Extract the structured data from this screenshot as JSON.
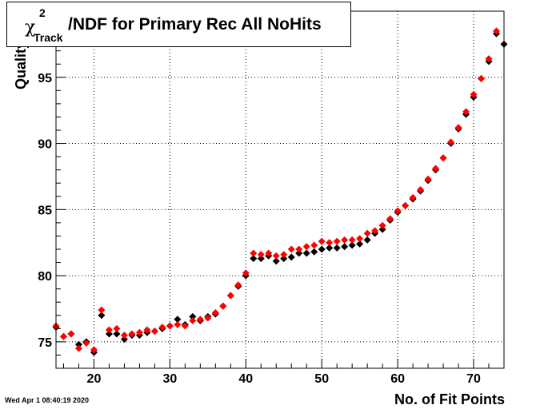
{
  "chart_data": {
    "type": "scatter",
    "title": {
      "chi": "χ",
      "superscript": "2",
      "subscript": "Track",
      "rest": "/NDF for Primary Rec All NoHits"
    },
    "xlabel": "No. of Fit Points",
    "ylabel": "Quality",
    "xlim": [
      15,
      74
    ],
    "ylim": [
      73,
      100
    ],
    "xticks": [
      20,
      30,
      40,
      50,
      60,
      70
    ],
    "yticks": [
      75,
      80,
      85,
      90,
      95
    ],
    "grid": true,
    "marker": "diamond",
    "x": [
      15,
      16,
      17,
      18,
      19,
      20,
      21,
      22,
      23,
      24,
      25,
      26,
      27,
      28,
      29,
      30,
      31,
      32,
      33,
      34,
      35,
      36,
      37,
      38,
      39,
      40,
      41,
      42,
      43,
      44,
      45,
      46,
      47,
      48,
      49,
      50,
      51,
      52,
      53,
      54,
      55,
      56,
      57,
      58,
      59,
      60,
      61,
      62,
      63,
      64,
      65,
      66,
      67,
      68,
      69,
      70,
      71,
      72,
      73,
      74
    ],
    "series": [
      {
        "color": "#000000",
        "values": [
          76.1,
          75.4,
          75.6,
          74.8,
          75.0,
          74.2,
          77.0,
          75.6,
          75.6,
          75.2,
          75.5,
          75.5,
          75.7,
          75.8,
          76.0,
          76.2,
          76.7,
          76.3,
          76.9,
          76.6,
          76.9,
          77.1,
          77.7,
          78.5,
          79.2,
          80.0,
          81.3,
          81.3,
          81.5,
          81.1,
          81.3,
          81.4,
          81.7,
          81.7,
          81.8,
          82.0,
          82.1,
          82.1,
          82.2,
          82.3,
          82.4,
          82.7,
          83.2,
          83.5,
          84.2,
          84.8,
          85.3,
          85.8,
          86.4,
          87.2,
          88.0,
          88.9,
          90.0,
          91.1,
          92.2,
          93.5,
          94.9,
          96.2,
          98.3,
          97.5
        ]
      },
      {
        "color": "#ff0000",
        "values": [
          76.2,
          75.4,
          75.6,
          74.5,
          74.9,
          74.4,
          77.4,
          75.9,
          76.0,
          75.5,
          75.6,
          75.7,
          75.9,
          75.8,
          76.1,
          76.2,
          76.3,
          76.2,
          76.6,
          76.7,
          76.8,
          77.2,
          77.7,
          78.5,
          79.3,
          80.2,
          81.7,
          81.6,
          81.7,
          81.5,
          81.6,
          82.0,
          82.0,
          82.2,
          82.3,
          82.6,
          82.5,
          82.6,
          82.7,
          82.7,
          82.8,
          83.2,
          83.4,
          83.8,
          84.3,
          84.9,
          85.3,
          85.9,
          86.5,
          87.3,
          88.1,
          88.9,
          90.1,
          91.2,
          92.4,
          93.7,
          94.9,
          96.4,
          98.5,
          null
        ]
      }
    ]
  },
  "footer": {
    "timestamp": "Wed Apr  1 08:40:19 2020"
  }
}
